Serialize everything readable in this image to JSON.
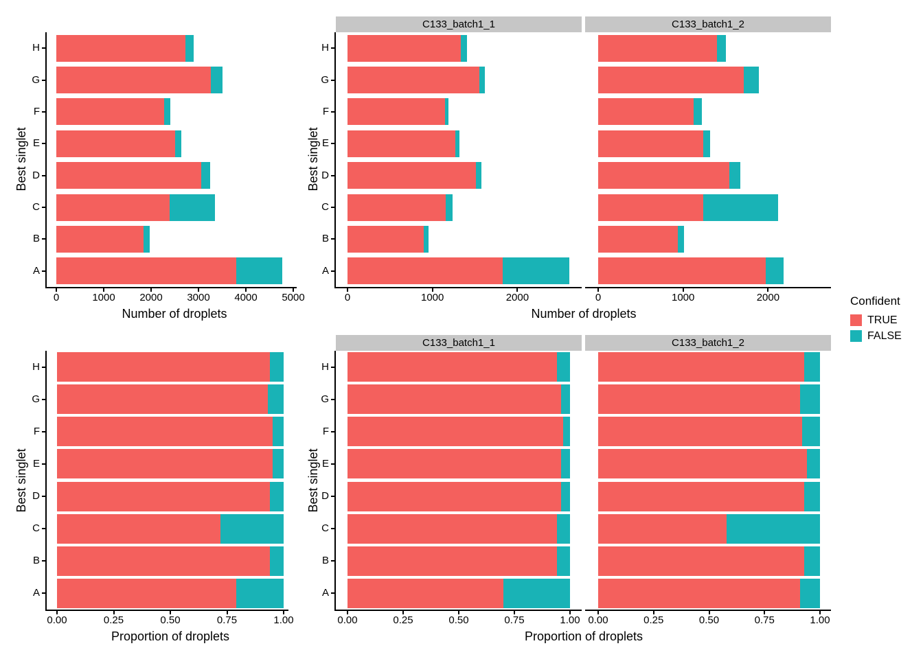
{
  "figure": {
    "background": "#ffffff",
    "strip_background": "#C6C6C6",
    "axis_color": "#000000",
    "legend": {
      "title": "Confident",
      "position": "right",
      "entries": [
        {
          "label": "TRUE",
          "color": "#F4605D"
        },
        {
          "label": "FALSE",
          "color": "#19B3B6"
        }
      ]
    }
  },
  "chart_data": [
    {
      "id": "droplet-counts",
      "type": "bar",
      "orientation": "horizontal",
      "stacked": true,
      "grid": false,
      "ylabel": "Best singlet",
      "xlabel": "Number of droplets",
      "categories": [
        "A",
        "B",
        "C",
        "D",
        "E",
        "F",
        "G",
        "H"
      ],
      "series_names": [
        "TRUE",
        "FALSE"
      ],
      "panels": [
        {
          "facet": null,
          "xlim": [
            0,
            5075
          ],
          "xtick_values": [
            0,
            1000,
            2000,
            3000,
            4000,
            5000
          ],
          "xtick_labels": [
            "0",
            "1000",
            "2000",
            "3000",
            "4000",
            "5000"
          ],
          "series": [
            {
              "name": "TRUE",
              "values": [
                3790,
                1840,
                2395,
                3055,
                2510,
                2275,
                3260,
                2720
              ]
            },
            {
              "name": "FALSE",
              "values": [
                985,
                125,
                950,
                185,
                125,
                130,
                245,
                185
              ]
            }
          ]
        },
        {
          "facet": "C133_batch1_1",
          "xlim": [
            0,
            2760
          ],
          "xtick_values": [
            0,
            1000,
            2000
          ],
          "xtick_labels": [
            "0",
            "1000",
            "2000"
          ],
          "series": [
            {
              "name": "TRUE",
              "values": [
                1825,
                900,
                1160,
                1515,
                1270,
                1150,
                1550,
                1330
              ]
            },
            {
              "name": "FALSE",
              "values": [
                785,
                55,
                75,
                60,
                50,
                40,
                70,
                80
              ]
            }
          ]
        },
        {
          "facet": "C133_batch1_2",
          "xlim": [
            0,
            2760
          ],
          "xtick_values": [
            0,
            1000,
            2000
          ],
          "xtick_labels": [
            "0",
            "1000",
            "2000"
          ],
          "series": [
            {
              "name": "TRUE",
              "values": [
                1975,
                940,
                1235,
                1545,
                1240,
                1125,
                1715,
                1395
              ]
            },
            {
              "name": "FALSE",
              "values": [
                205,
                70,
                885,
                125,
                75,
                95,
                180,
                105
              ]
            }
          ]
        }
      ]
    },
    {
      "id": "droplet-proportions",
      "type": "bar",
      "orientation": "horizontal",
      "stacked": true,
      "grid": false,
      "ylabel": "Best singlet",
      "xlabel": "Proportion of droplets",
      "categories": [
        "A",
        "B",
        "C",
        "D",
        "E",
        "F",
        "G",
        "H"
      ],
      "series_names": [
        "TRUE",
        "FALSE"
      ],
      "panels": [
        {
          "facet": null,
          "xlim": [
            0,
            1.03
          ],
          "xtick_values": [
            0,
            0.25,
            0.5,
            0.75,
            1.0
          ],
          "xtick_labels": [
            "0.00",
            "0.25",
            "0.50",
            "0.75",
            "1.00"
          ],
          "series": [
            {
              "name": "TRUE",
              "values": [
                0.79,
                0.94,
                0.72,
                0.94,
                0.95,
                0.95,
                0.93,
                0.94
              ]
            },
            {
              "name": "FALSE",
              "values": [
                0.21,
                0.06,
                0.28,
                0.06,
                0.05,
                0.05,
                0.07,
                0.06
              ]
            }
          ]
        },
        {
          "facet": "C133_batch1_1",
          "xlim": [
            0,
            1.03
          ],
          "xtick_values": [
            0,
            0.25,
            0.5,
            0.75,
            1.0
          ],
          "xtick_labels": [
            "0.00",
            "0.25",
            "0.50",
            "0.75",
            "1.00"
          ],
          "series": [
            {
              "name": "TRUE",
              "values": [
                0.7,
                0.94,
                0.94,
                0.96,
                0.96,
                0.97,
                0.96,
                0.94
              ]
            },
            {
              "name": "FALSE",
              "values": [
                0.3,
                0.06,
                0.06,
                0.04,
                0.04,
                0.03,
                0.04,
                0.06
              ]
            }
          ]
        },
        {
          "facet": "C133_batch1_2",
          "xlim": [
            0,
            1.03
          ],
          "xtick_values": [
            0,
            0.25,
            0.5,
            0.75,
            1.0
          ],
          "xtick_labels": [
            "0.00",
            "0.25",
            "0.50",
            "0.75",
            "1.00"
          ],
          "series": [
            {
              "name": "TRUE",
              "values": [
                0.91,
                0.93,
                0.58,
                0.93,
                0.94,
                0.92,
                0.91,
                0.93
              ]
            },
            {
              "name": "FALSE",
              "values": [
                0.09,
                0.07,
                0.42,
                0.07,
                0.06,
                0.08,
                0.09,
                0.07
              ]
            }
          ]
        }
      ]
    }
  ]
}
